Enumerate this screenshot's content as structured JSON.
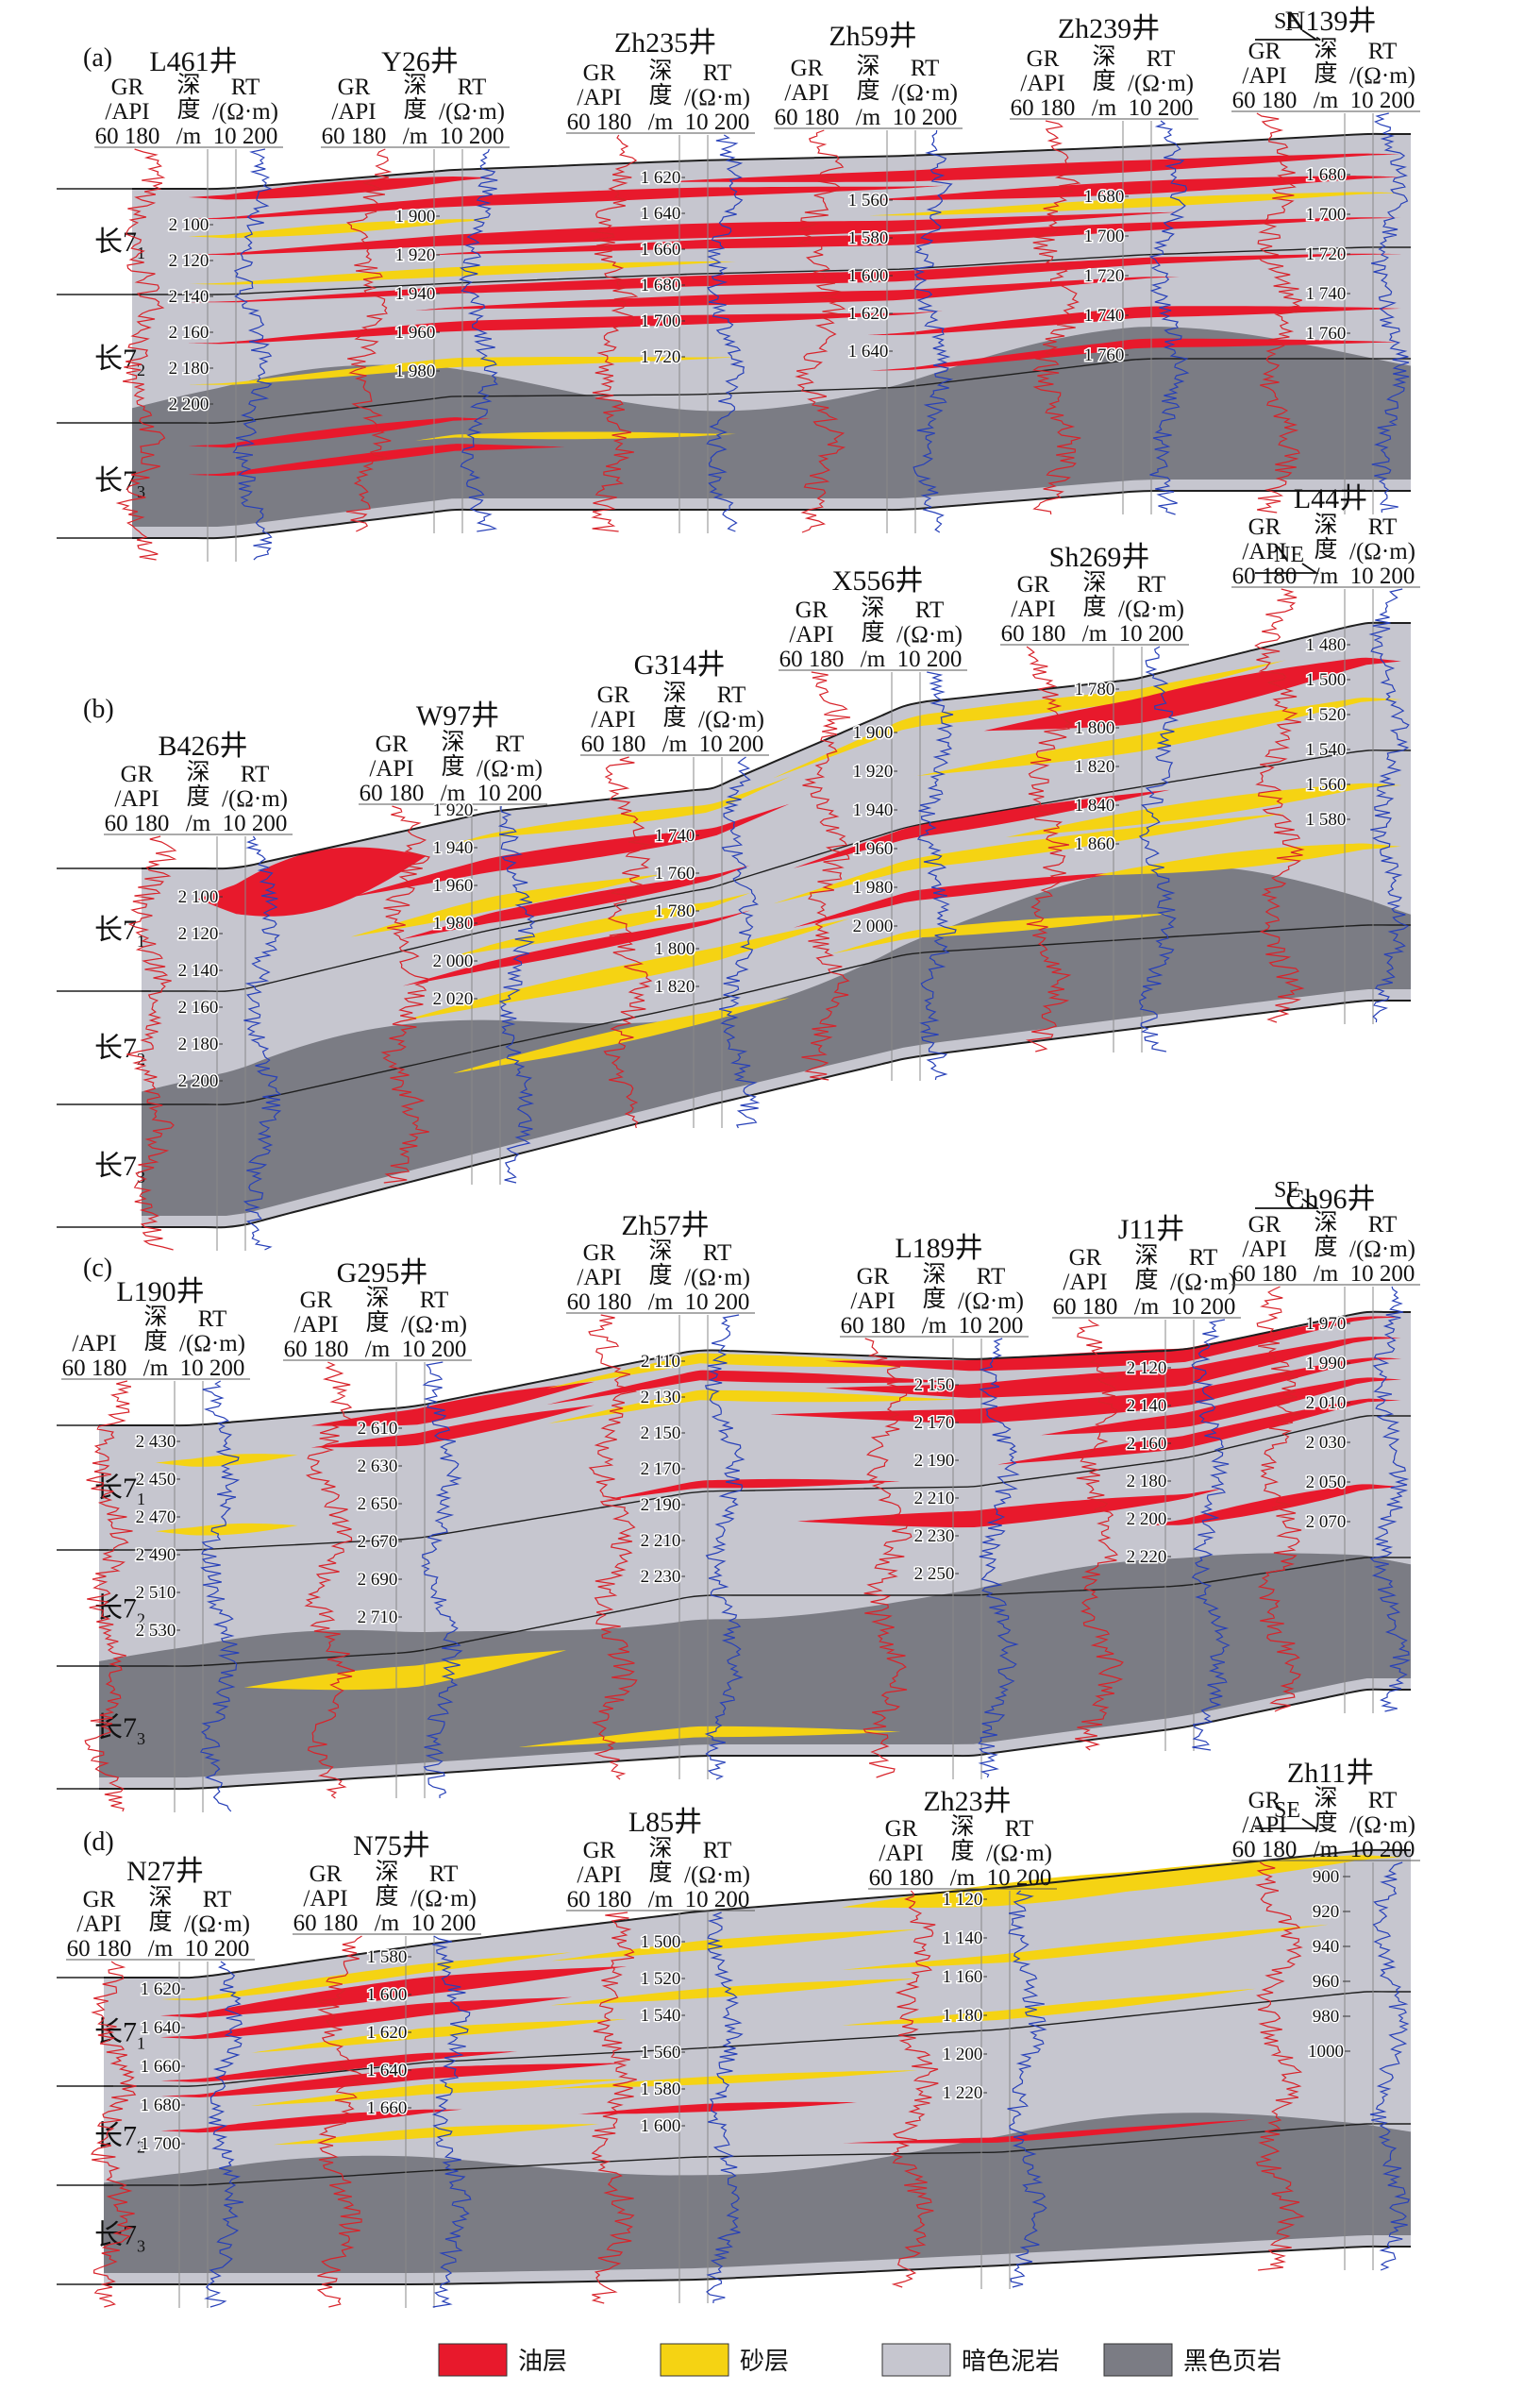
{
  "colors": {
    "oil_layer": "#e8192c",
    "sand_layer": "#f5d313",
    "dark_mudstone": "#c6c6cf",
    "black_shale": "#7b7c84",
    "gr_curve": "#d8232a",
    "rt_curve": "#2740b8",
    "boundary_line": "#1f1f1f"
  },
  "header": {
    "gr_label": "GR",
    "gr_unit": "/API",
    "gr_scale": "60 180",
    "depth_label_1": "深",
    "depth_label_2": "度",
    "depth_unit": "/m",
    "rt_label": "RT",
    "rt_unit": "/(Ω·m)",
    "rt_scale": "10 200"
  },
  "unit_labels": {
    "prefix": "长7",
    "subs": [
      "1",
      "2",
      "3"
    ]
  },
  "legend": [
    {
      "key": "oil",
      "label": "油层",
      "color": "#e8192c"
    },
    {
      "key": "sand",
      "label": "砂层",
      "color": "#f5d313"
    },
    {
      "key": "mud",
      "label": "暗色泥岩",
      "color": "#c6c6cf"
    },
    {
      "key": "shale",
      "label": "黑色页岩",
      "color": "#7b7c84"
    }
  ],
  "panels": [
    {
      "id": "a",
      "label": "(a)",
      "direction": "SE",
      "wells": [
        {
          "name": "L461井",
          "depths": [
            "2 100",
            "2 120",
            "2 140",
            "2 160",
            "2 180",
            "2 200"
          ],
          "with_gr_header": true
        },
        {
          "name": "Y26井",
          "depths": [
            "1 900",
            "1 920",
            "1 940",
            "1 960",
            "1 980"
          ],
          "with_gr_header": true
        },
        {
          "name": "Zh235井",
          "depths": [
            "1 620",
            "1 640",
            "1 660",
            "1 680",
            "1 700",
            "1 720"
          ],
          "with_gr_header": true
        },
        {
          "name": "Zh59井",
          "depths": [
            "1 560",
            "1 580",
            "1 600",
            "1 620",
            "1 640"
          ],
          "with_gr_header": true
        },
        {
          "name": "Zh239井",
          "depths": [
            "1 680",
            "1 700",
            "1 720",
            "1 740",
            "1 760"
          ],
          "with_gr_header": true
        },
        {
          "name": "N139井",
          "depths": [
            "1 680",
            "1 700",
            "1 720",
            "1 740",
            "1 760"
          ],
          "with_gr_header": true
        }
      ]
    },
    {
      "id": "b",
      "label": "(b)",
      "direction": "NE",
      "wells": [
        {
          "name": "B426井",
          "depths": [
            "2 100",
            "2 120",
            "2 140",
            "2 160",
            "2 180",
            "2 200"
          ],
          "with_gr_header": true
        },
        {
          "name": "W97井",
          "depths": [
            "1 920",
            "1 940",
            "1 960",
            "1 980",
            "2 000",
            "2 020"
          ],
          "with_gr_header": true
        },
        {
          "name": "G314井",
          "depths": [
            "1 740",
            "1 760",
            "1 780",
            "1 800",
            "1 820"
          ],
          "with_gr_header": true
        },
        {
          "name": "X556井",
          "depths": [
            "1 900",
            "1 920",
            "1 940",
            "1 960",
            "1 980",
            "2 000"
          ],
          "with_gr_header": true
        },
        {
          "name": "Sh269井",
          "depths": [
            "1 780",
            "1 800",
            "1 820",
            "1 840",
            "1 860"
          ],
          "with_gr_header": true
        },
        {
          "name": "L44井",
          "depths": [
            "1 480",
            "1 500",
            "1 520",
            "1 540",
            "1 560",
            "1 580"
          ],
          "with_gr_header": true
        }
      ]
    },
    {
      "id": "c",
      "label": "(c)",
      "direction": "SE",
      "wells": [
        {
          "name": "L190井",
          "depths": [
            "2 430",
            "2 450",
            "2 470",
            "2 490",
            "2 510",
            "2 530"
          ],
          "with_gr_header": false
        },
        {
          "name": "G295井",
          "depths": [
            "2 610",
            "2 630",
            "2 650",
            "2 670",
            "2 690",
            "2 710"
          ],
          "with_gr_header": true
        },
        {
          "name": "Zh57井",
          "depths": [
            "2 110",
            "2 130",
            "2 150",
            "2 170",
            "2 190",
            "2 210",
            "2 230"
          ],
          "with_gr_header": true
        },
        {
          "name": "L189井",
          "depths": [
            "2 150",
            "2 170",
            "2 190",
            "2 210",
            "2 230",
            "2 250"
          ],
          "with_gr_header": true
        },
        {
          "name": "J11井",
          "depths": [
            "2 120",
            "2 140",
            "2 160",
            "2 180",
            "2 200",
            "2 220"
          ],
          "with_gr_header": true
        },
        {
          "name": "Ch96井",
          "depths": [
            "1 970",
            "1 990",
            "2 010",
            "2 030",
            "2 050",
            "2 070"
          ],
          "with_gr_header": true
        }
      ]
    },
    {
      "id": "d",
      "label": "(d)",
      "direction": "SE",
      "wells": [
        {
          "name": "N27井",
          "depths": [
            "1 620",
            "1 640",
            "1 660",
            "1 680",
            "1 700"
          ],
          "with_gr_header": true
        },
        {
          "name": "N75井",
          "depths": [
            "1 580",
            "1 600",
            "1 620",
            "1 640",
            "1 660"
          ],
          "with_gr_header": true
        },
        {
          "name": "L85井",
          "depths": [
            "1 500",
            "1 520",
            "1 540",
            "1 560",
            "1 580",
            "1 600"
          ],
          "with_gr_header": true
        },
        {
          "name": "Zh23井",
          "depths": [
            "1 120",
            "1 140",
            "1 160",
            "1 180",
            "1 200",
            "1 220"
          ],
          "with_gr_header": true
        },
        {
          "name": "Zh11井",
          "depths": [
            "900",
            "920",
            "940",
            "960",
            "980",
            "1000"
          ],
          "with_gr_header": true
        }
      ]
    }
  ]
}
